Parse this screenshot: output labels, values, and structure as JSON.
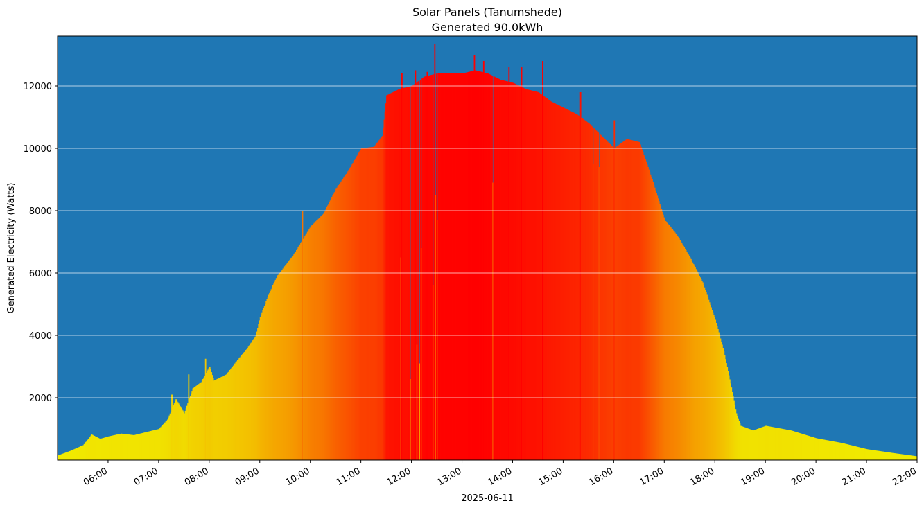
{
  "chart_data": {
    "type": "bar",
    "title": "Solar Panels (Tanumshede)",
    "subtitle": "Generated 90.0kWh",
    "xlabel": "2025-06-11",
    "ylabel": "Generated Electricity (Watts)",
    "x_range": [
      "05:00",
      "22:00"
    ],
    "ylim": [
      0,
      13600
    ],
    "yticks": [
      2000,
      4000,
      6000,
      8000,
      10000,
      12000
    ],
    "xticks": [
      "06:00",
      "07:00",
      "08:00",
      "09:00",
      "10:00",
      "11:00",
      "12:00",
      "13:00",
      "14:00",
      "15:00",
      "16:00",
      "17:00",
      "18:00",
      "19:00",
      "20:00",
      "21:00",
      "22:00"
    ],
    "grid": "horizontal",
    "background_color": "#1f77b4",
    "gridline_color": "#ffffff",
    "color_scale": {
      "low": "#f0ee00",
      "mid": "#f5a000",
      "high": "#ff0000",
      "max_watts": 12500
    },
    "curve": [
      [
        "05:00",
        150
      ],
      [
        "05:15",
        300
      ],
      [
        "05:30",
        480
      ],
      [
        "05:40",
        820
      ],
      [
        "05:50",
        680
      ],
      [
        "06:00",
        760
      ],
      [
        "06:15",
        850
      ],
      [
        "06:30",
        800
      ],
      [
        "06:45",
        900
      ],
      [
        "07:00",
        1000
      ],
      [
        "07:10",
        1300
      ],
      [
        "07:20",
        1950
      ],
      [
        "07:30",
        1500
      ],
      [
        "07:40",
        2300
      ],
      [
        "07:50",
        2500
      ],
      [
        "08:00",
        3000
      ],
      [
        "08:05",
        2550
      ],
      [
        "08:20",
        2750
      ],
      [
        "08:30",
        3100
      ],
      [
        "08:45",
        3600
      ],
      [
        "08:55",
        4000
      ],
      [
        "09:00",
        4600
      ],
      [
        "09:10",
        5300
      ],
      [
        "09:20",
        5900
      ],
      [
        "09:40",
        6600
      ],
      [
        "10:00",
        7500
      ],
      [
        "10:15",
        7900
      ],
      [
        "10:30",
        8700
      ],
      [
        "10:45",
        9300
      ],
      [
        "11:00",
        10000
      ],
      [
        "11:15",
        10050
      ],
      [
        "11:25",
        10400
      ],
      [
        "11:30",
        11700
      ],
      [
        "11:45",
        11900
      ],
      [
        "12:00",
        12000
      ],
      [
        "12:15",
        12300
      ],
      [
        "12:30",
        12400
      ],
      [
        "13:00",
        12400
      ],
      [
        "13:15",
        12500
      ],
      [
        "13:30",
        12400
      ],
      [
        "13:45",
        12200
      ],
      [
        "14:00",
        12100
      ],
      [
        "14:15",
        11900
      ],
      [
        "14:30",
        11800
      ],
      [
        "14:45",
        11500
      ],
      [
        "15:00",
        11300
      ],
      [
        "15:15",
        11100
      ],
      [
        "15:30",
        10800
      ],
      [
        "15:45",
        10400
      ],
      [
        "16:00",
        10000
      ],
      [
        "16:15",
        10300
      ],
      [
        "16:30",
        10200
      ],
      [
        "16:45",
        9000
      ],
      [
        "17:00",
        7700
      ],
      [
        "17:15",
        7200
      ],
      [
        "17:30",
        6500
      ],
      [
        "17:45",
        5700
      ],
      [
        "18:00",
        4500
      ],
      [
        "18:10",
        3500
      ],
      [
        "18:20",
        2200
      ],
      [
        "18:25",
        1500
      ],
      [
        "18:30",
        1100
      ],
      [
        "18:45",
        950
      ],
      [
        "19:00",
        1100
      ],
      [
        "19:30",
        950
      ],
      [
        "20:00",
        700
      ],
      [
        "20:30",
        550
      ],
      [
        "21:00",
        350
      ],
      [
        "21:30",
        230
      ],
      [
        "22:00",
        120
      ]
    ],
    "dips": [
      [
        "11:47",
        6500
      ],
      [
        "11:58",
        2600
      ],
      [
        "12:06",
        3700
      ],
      [
        "12:09",
        3100
      ],
      [
        "12:11",
        6800
      ],
      [
        "12:25",
        5600
      ],
      [
        "12:28",
        8500
      ],
      [
        "12:30",
        7700
      ],
      [
        "13:36",
        8900
      ],
      [
        "15:35",
        9500
      ],
      [
        "15:42",
        9400
      ]
    ],
    "spikes": [
      [
        "11:48",
        12400
      ],
      [
        "12:04",
        12500
      ],
      [
        "12:18",
        12450
      ],
      [
        "12:27",
        13350
      ],
      [
        "13:14",
        13000
      ],
      [
        "13:25",
        12800
      ],
      [
        "13:55",
        12600
      ],
      [
        "14:10",
        12600
      ],
      [
        "14:35",
        12800
      ],
      [
        "15:20",
        11800
      ],
      [
        "16:00",
        10900
      ],
      [
        "07:55",
        3250
      ],
      [
        "07:35",
        2750
      ],
      [
        "07:15",
        2100
      ],
      [
        "09:50",
        8000
      ]
    ]
  }
}
